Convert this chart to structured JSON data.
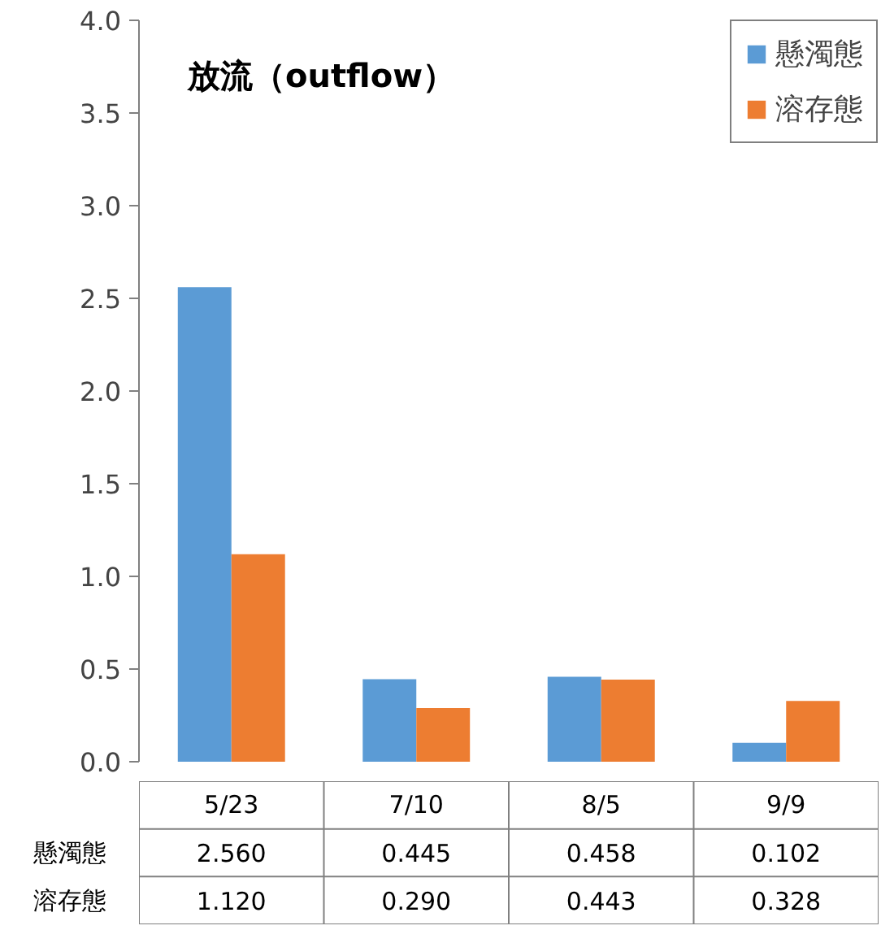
{
  "chart_data": {
    "type": "bar",
    "title": "放流（outflow）",
    "categories": [
      "5/23",
      "7/10",
      "8/5",
      "9/9"
    ],
    "series": [
      {
        "name": "懸濁態",
        "color": "#5b9bd5",
        "values": [
          2.56,
          0.445,
          0.458,
          0.102
        ],
        "value_labels": [
          "2.560",
          "0.445",
          "0.458",
          "0.102"
        ]
      },
      {
        "name": "溶存態",
        "color": "#ed7d31",
        "values": [
          1.12,
          0.29,
          0.443,
          0.328
        ],
        "value_labels": [
          "1.120",
          "0.290",
          "0.443",
          "0.328"
        ]
      }
    ],
    "ylim": [
      0,
      4
    ],
    "yticks": [
      {
        "value": 0,
        "label": "0.0"
      },
      {
        "value": 0.5,
        "label": "0.5"
      },
      {
        "value": 1,
        "label": "1.0"
      },
      {
        "value": 1.5,
        "label": "1.5"
      },
      {
        "value": 2,
        "label": "2.0"
      },
      {
        "value": 2.5,
        "label": "2.5"
      },
      {
        "value": 3,
        "label": "3.0"
      },
      {
        "value": 3.5,
        "label": "3.5"
      },
      {
        "value": 4,
        "label": "4.0"
      }
    ],
    "grid": false,
    "legend": "top right"
  }
}
